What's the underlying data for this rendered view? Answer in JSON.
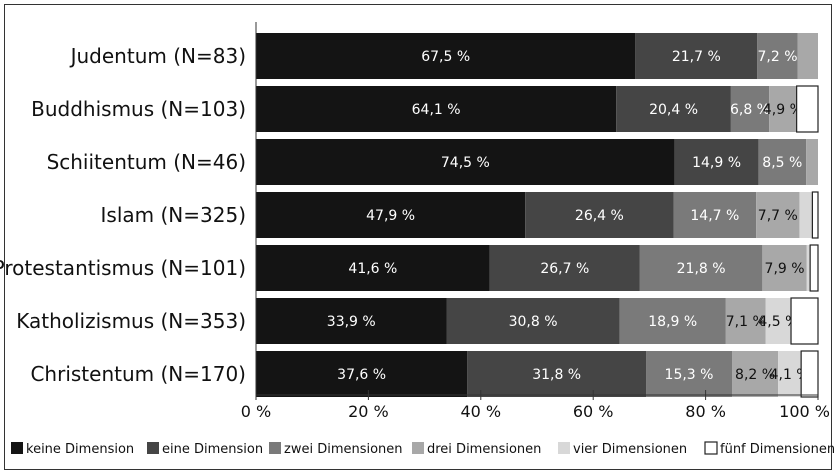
{
  "chart_data": {
    "type": "bar",
    "orientation": "horizontal",
    "stacked": true,
    "categories": [
      "Judentum (N=83)",
      "Buddhismus (N=103)",
      "Schiitentum (N=46)",
      "Islam (N=325)",
      "Protestantismus (N=101)",
      "Katholizismus (N=353)",
      "Christentum (N=170)"
    ],
    "series": [
      {
        "name": "keine Dimension",
        "color": "#141414",
        "label_color": "#ffffff",
        "values": [
          67.5,
          64.1,
          74.5,
          47.9,
          41.6,
          33.9,
          37.6
        ],
        "labels": [
          "67,5 %",
          "64,1 %",
          "74,5 %",
          "47,9 %",
          "41,6 %",
          "33,9 %",
          "37,6 %"
        ]
      },
      {
        "name": "eine Dimension",
        "color": "#454545",
        "label_color": "#ffffff",
        "values": [
          21.7,
          20.4,
          14.9,
          26.4,
          26.7,
          30.8,
          31.8
        ],
        "labels": [
          "21,7 %",
          "20,4 %",
          "14,9 %",
          "26,4 %",
          "26,7 %",
          "30,8 %",
          "31,8 %"
        ]
      },
      {
        "name": "zwei Dimensionen",
        "color": "#7a7a7a",
        "label_color": "#ffffff",
        "values": [
          7.2,
          6.8,
          8.5,
          14.7,
          21.8,
          18.9,
          15.3
        ],
        "labels": [
          "7,2 %",
          "6,8 %",
          "8,5 %",
          "14,7 %",
          "21,8 %",
          "18,9 %",
          "15,3 %"
        ]
      },
      {
        "name": "drei Dimensionen",
        "color": "#a8a8a8",
        "label_color": "#111111",
        "values": [
          3.6,
          4.9,
          2.1,
          7.7,
          7.9,
          7.1,
          8.2
        ],
        "labels": [
          "",
          "4,9 %",
          "",
          "7,7 %",
          "7,9 %",
          "7,1 %",
          "8,2 %"
        ]
      },
      {
        "name": "vier Dimensionen",
        "color": "#d8d8d8",
        "label_color": "#111111",
        "values": [
          0,
          0,
          0,
          2.3,
          0.6,
          4.5,
          4.1
        ],
        "labels": [
          "",
          "",
          "",
          "",
          "",
          "4,5 %",
          "4,1 %"
        ]
      },
      {
        "name": "fünf Dimensionen",
        "color": "#ffffff",
        "label_color": "#111111",
        "values": [
          0,
          3.8,
          0,
          1.0,
          1.4,
          4.8,
          3.0
        ],
        "labels": [
          "",
          "",
          "",
          "",
          "",
          "",
          ""
        ]
      }
    ],
    "xlim": [
      0,
      100
    ],
    "xticks": [
      "0 %",
      "20 %",
      "40 %",
      "60 %",
      "80 %",
      "100 %"
    ],
    "legend_position": "bottom",
    "grid": false
  }
}
